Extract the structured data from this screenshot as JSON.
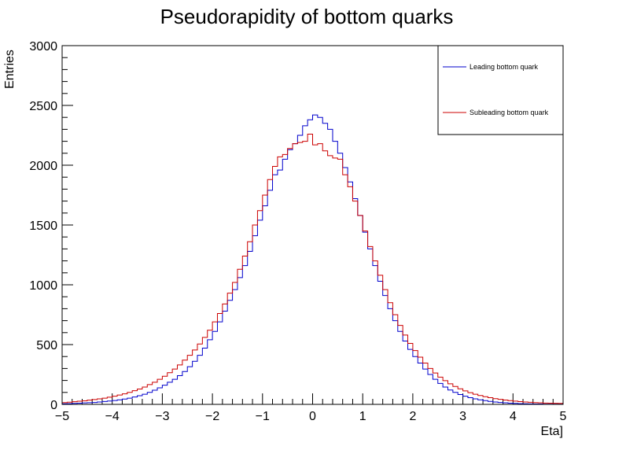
{
  "colors": {
    "background": "#ffffff",
    "frame": "#000000",
    "leading": "#0000cc",
    "subleading": "#cc0000"
  },
  "chart_data": {
    "type": "line",
    "style": "step-histogram",
    "title": "Pseudorapidity of bottom quarks",
    "xlabel": "Eta]",
    "ylabel": "Entries",
    "xlim": [
      -5,
      5
    ],
    "ylim": [
      0,
      3000
    ],
    "x_ticks": [
      "−5",
      "−4",
      "−3",
      "−2",
      "−1",
      "0",
      "1",
      "2",
      "3",
      "4",
      "5"
    ],
    "y_ticks": [
      "0",
      "500",
      "1000",
      "1500",
      "2000",
      "2500",
      "3000"
    ],
    "grid": false,
    "legend_position": "top-right",
    "bins": 100,
    "bin_width": 0.1,
    "bin_start": -5,
    "series": [
      {
        "name": "Leading bottom quark",
        "color": "#0000cc",
        "values": [
          5,
          6,
          8,
          10,
          12,
          14,
          16,
          20,
          24,
          28,
          32,
          38,
          44,
          52,
          62,
          72,
          85,
          100,
          118,
          138,
          160,
          185,
          210,
          240,
          275,
          315,
          360,
          410,
          470,
          540,
          610,
          690,
          780,
          870,
          960,
          1060,
          1160,
          1280,
          1410,
          1540,
          1660,
          1790,
          1920,
          1960,
          2050,
          2130,
          2180,
          2250,
          2330,
          2380,
          2420,
          2400,
          2350,
          2300,
          2200,
          2100,
          1980,
          1860,
          1720,
          1580,
          1440,
          1300,
          1160,
          1030,
          910,
          800,
          700,
          610,
          530,
          460,
          400,
          345,
          295,
          250,
          210,
          175,
          145,
          120,
          100,
          82,
          68,
          56,
          46,
          38,
          31,
          25,
          20,
          16,
          13,
          10,
          8,
          6,
          5,
          4,
          3,
          3,
          2,
          2,
          2,
          2
        ]
      },
      {
        "name": "Subleading bottom quark",
        "color": "#cc0000",
        "values": [
          15,
          18,
          22,
          26,
          30,
          35,
          40,
          46,
          52,
          60,
          68,
          78,
          88,
          100,
          114,
          128,
          145,
          165,
          185,
          210,
          235,
          265,
          295,
          330,
          370,
          410,
          455,
          505,
          560,
          620,
          690,
          760,
          840,
          930,
          1020,
          1130,
          1240,
          1360,
          1500,
          1620,
          1750,
          1880,
          1990,
          2070,
          2090,
          2140,
          2180,
          2190,
          2200,
          2260,
          2170,
          2180,
          2120,
          2080,
          2060,
          2050,
          1920,
          1820,
          1700,
          1580,
          1450,
          1320,
          1200,
          1080,
          960,
          850,
          750,
          660,
          580,
          510,
          450,
          395,
          345,
          300,
          262,
          228,
          198,
          172,
          150,
          130,
          113,
          98,
          85,
          74,
          64,
          56,
          48,
          42,
          36,
          31,
          27,
          23,
          20,
          17,
          15,
          13,
          11,
          10,
          9,
          8
        ]
      }
    ]
  }
}
